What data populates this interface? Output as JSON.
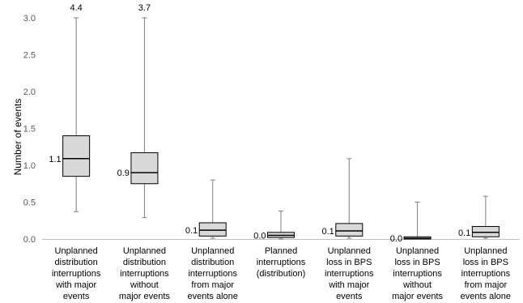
{
  "chart_data": {
    "type": "box",
    "ylabel": "Number of events",
    "ylim": [
      0,
      3.0
    ],
    "yticks": [
      "0.0",
      "0.5",
      "1.0",
      "1.5",
      "2.0",
      "2.5",
      "3.0"
    ],
    "grid": false,
    "categories": [
      [
        "Unplanned",
        "distribution",
        "interruptions",
        "with major",
        "events"
      ],
      [
        "Unplanned",
        "distribution",
        "interruptions",
        "without",
        "major events"
      ],
      [
        "Unplanned",
        "distribution",
        "interruptions",
        "from major",
        "events alone"
      ],
      [
        "Planned",
        "interruptions",
        "(distribution)"
      ],
      [
        "Unplanned",
        "loss in BPS",
        "interruptions",
        "with major",
        "events"
      ],
      [
        "Unplanned",
        "loss in BPS",
        "interruptions",
        "without",
        "major events"
      ],
      [
        "Unplanned",
        "loss in BPS",
        "interruptions",
        "from major",
        "events alone"
      ]
    ],
    "boxes": [
      {
        "min": 0.37,
        "q1": 0.85,
        "median": 1.09,
        "q3": 1.4,
        "max": 3.0,
        "median_label": "1.1",
        "max_label": "4.4"
      },
      {
        "min": 0.29,
        "q1": 0.75,
        "median": 0.9,
        "q3": 1.17,
        "max": 3.0,
        "median_label": "0.9",
        "max_label": "3.7"
      },
      {
        "min": 0.01,
        "q1": 0.04,
        "median": 0.12,
        "q3": 0.22,
        "max": 0.8,
        "median_label": "0.1",
        "max_label": ""
      },
      {
        "min": 0.0,
        "q1": 0.02,
        "median": 0.05,
        "q3": 0.09,
        "max": 0.38,
        "median_label": "0.0",
        "max_label": ""
      },
      {
        "min": 0.01,
        "q1": 0.04,
        "median": 0.11,
        "q3": 0.21,
        "max": 1.09,
        "median_label": "0.1",
        "max_label": ""
      },
      {
        "min": 0.0,
        "q1": 0.0,
        "median": 0.01,
        "q3": 0.03,
        "max": 0.5,
        "median_label": "0.0",
        "max_label": ""
      },
      {
        "min": 0.01,
        "q1": 0.03,
        "median": 0.09,
        "q3": 0.17,
        "max": 0.58,
        "median_label": "0.1",
        "max_label": ""
      }
    ],
    "colors": {
      "box_fill": "#d9d9d9",
      "box_stroke": "#000000",
      "whisker": "#7f7f7f",
      "axis": "#bfbfbf"
    }
  }
}
